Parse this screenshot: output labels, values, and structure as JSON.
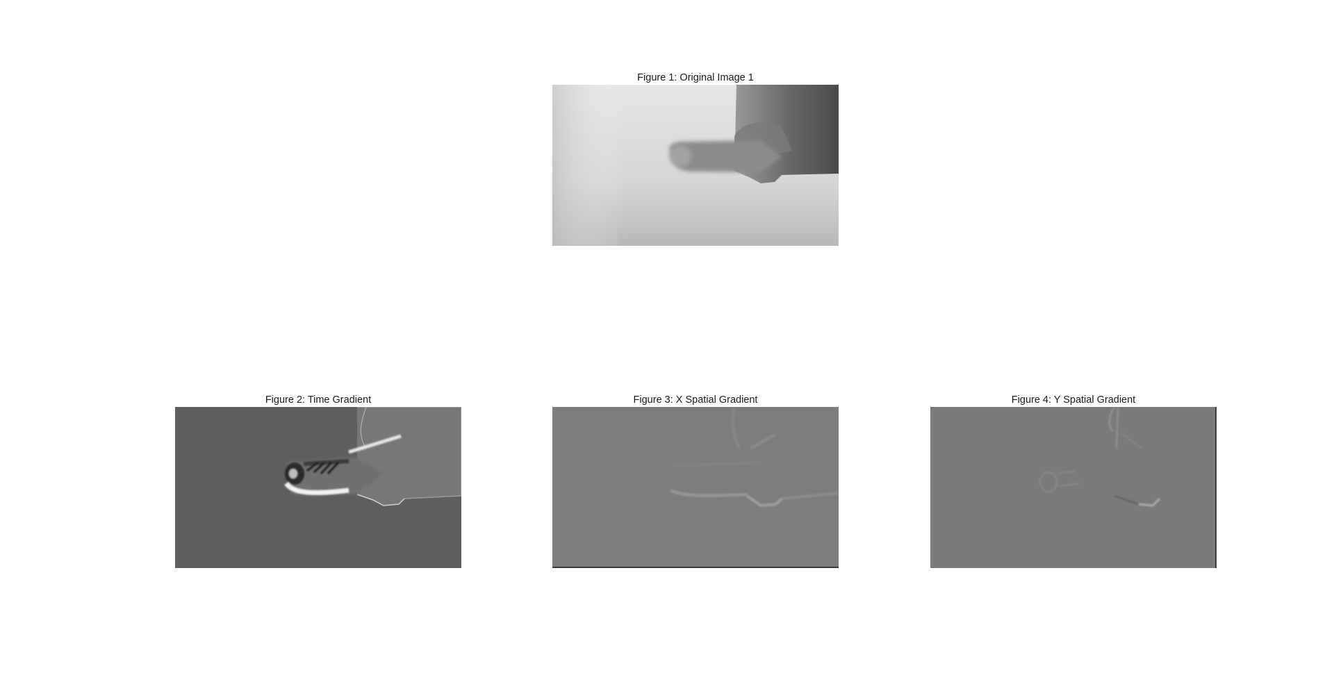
{
  "figures": [
    {
      "id": "original",
      "title": "Figure 1: Original Image 1",
      "content": "grayscale photograph of a hand pointing left against a light wall",
      "tone": "light"
    },
    {
      "id": "time-gradient",
      "title": "Figure 2: Time Gradient",
      "content": "temporal gradient image of the moving finger",
      "tone": "dark-gray"
    },
    {
      "id": "x-gradient",
      "title": "Figure 3: X Spatial Gradient",
      "content": "horizontal spatial gradient of the hand image",
      "tone": "mid-gray"
    },
    {
      "id": "y-gradient",
      "title": "Figure 4: Y Spatial Gradient",
      "content": "vertical spatial gradient of the hand image",
      "tone": "mid-gray"
    }
  ],
  "colors": {
    "background": "#ffffff",
    "wall": "#d8d8d8",
    "hand": "#6e6e6e",
    "time_gradient_bg": "#5e5e5e",
    "spatial_gradient_bg": "#7d7d7d"
  }
}
